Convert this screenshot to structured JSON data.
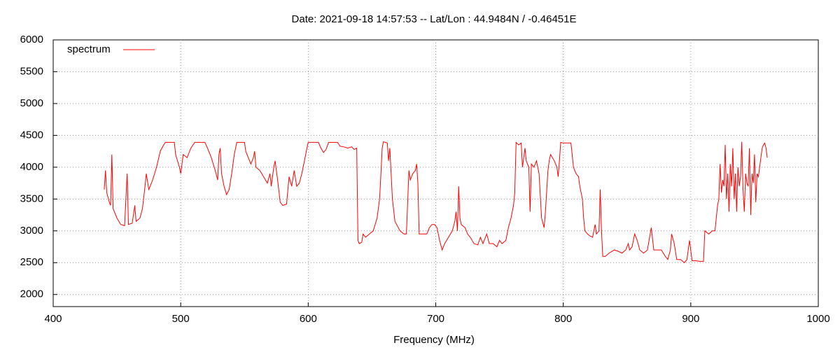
{
  "chart_data": {
    "type": "line",
    "title": "Date: 2021-09-18 14:57:53  --  Lat/Lon : 44.9484N / -0.46451E",
    "x_label": "Frequency (MHz)",
    "xlim": [
      400,
      1000
    ],
    "xticks": [
      400,
      500,
      600,
      700,
      800,
      900,
      1000
    ],
    "ylim": [
      1810,
      6000
    ],
    "yticks": [
      2000,
      2500,
      3000,
      3500,
      4000,
      4500,
      5000,
      5500,
      6000
    ],
    "grid": true,
    "legend_position": "top-left",
    "series": [
      {
        "name": "spectrum",
        "color": "#ff0000",
        "x": [
          440,
          441,
          442,
          444,
          445,
          446,
          447,
          450,
          453,
          456,
          458,
          459,
          462,
          464,
          465,
          468,
          470,
          472,
          473,
          475,
          478,
          481,
          484,
          486,
          488,
          492,
          495,
          496,
          499,
          500,
          502,
          505,
          508,
          511,
          516,
          519,
          521,
          524,
          527,
          529,
          530,
          531,
          532,
          534,
          536,
          538,
          540,
          542,
          544,
          548,
          550,
          551,
          553,
          555,
          557,
          558,
          559,
          562,
          565,
          568,
          570,
          571,
          573,
          574,
          576,
          578,
          580,
          583,
          585,
          587,
          589,
          591,
          593,
          595,
          597,
          599,
          600,
          605,
          608,
          610,
          612,
          614,
          616,
          620,
          623,
          625,
          628,
          631,
          634,
          636,
          638,
          639,
          640,
          642,
          643,
          645,
          648,
          651,
          654,
          656,
          657,
          658,
          659,
          662,
          663,
          664,
          666,
          668,
          672,
          675,
          677,
          679,
          680,
          682,
          684,
          685,
          686,
          687,
          690,
          693,
          695,
          697,
          699,
          701,
          703,
          705,
          707,
          710,
          713,
          715,
          716,
          717,
          718,
          719,
          720,
          723,
          725,
          727,
          730,
          733,
          735,
          737,
          740,
          742,
          745,
          748,
          750,
          752,
          755,
          757,
          759,
          761,
          762,
          763,
          765,
          767,
          768,
          770,
          771,
          773,
          774,
          775,
          777,
          779,
          781,
          783,
          785,
          786,
          788,
          789,
          790,
          793,
          795,
          796,
          797,
          798,
          800,
          803,
          806,
          807,
          808,
          810,
          812,
          813,
          815,
          816,
          817,
          819,
          821,
          823,
          825,
          826,
          828,
          829,
          830,
          831,
          833,
          836,
          840,
          843,
          846,
          849,
          851,
          852,
          854,
          856,
          858,
          860,
          863,
          866,
          869,
          871,
          874,
          877,
          880,
          882,
          884,
          885,
          887,
          889,
          892,
          895,
          897,
          899,
          901,
          904,
          907,
          910,
          911,
          914,
          917,
          919,
          921,
          922,
          923,
          924,
          925,
          926,
          927,
          928,
          929,
          930,
          931,
          932,
          933,
          934,
          935,
          936,
          937,
          938,
          939,
          940,
          941,
          942,
          943,
          944,
          945,
          946,
          947,
          948,
          949,
          950,
          951,
          952,
          953,
          954,
          955,
          956,
          957,
          958,
          959,
          960
        ],
        "values": [
          3650,
          3950,
          3600,
          3450,
          3400,
          4200,
          3350,
          3200,
          3100,
          3080,
          3900,
          3100,
          3120,
          3400,
          3150,
          3200,
          3350,
          3700,
          3900,
          3650,
          3800,
          4000,
          4250,
          4330,
          4390,
          4390,
          4390,
          4200,
          4000,
          3900,
          4200,
          4150,
          4300,
          4390,
          4390,
          4390,
          4300,
          4150,
          3950,
          3800,
          4200,
          4300,
          3900,
          3700,
          3570,
          3650,
          3900,
          4200,
          4390,
          4390,
          4390,
          4250,
          4150,
          4050,
          4150,
          4250,
          4000,
          3950,
          3850,
          3750,
          3900,
          3700,
          4000,
          4100,
          3800,
          3450,
          3400,
          3420,
          3850,
          3700,
          3950,
          3700,
          3750,
          3900,
          4100,
          4300,
          4390,
          4390,
          4390,
          4300,
          4230,
          4280,
          4390,
          4390,
          4390,
          4330,
          4320,
          4300,
          4320,
          4280,
          4300,
          2850,
          2800,
          2820,
          2950,
          2900,
          2950,
          3000,
          3200,
          3500,
          3900,
          4300,
          4400,
          4380,
          4100,
          4300,
          3500,
          3150,
          3000,
          2950,
          2950,
          3950,
          3800,
          3900,
          3950,
          4050,
          3750,
          2950,
          2950,
          2950,
          3050,
          3100,
          3100,
          3050,
          2850,
          2700,
          2800,
          2900,
          3000,
          3150,
          3300,
          3000,
          3700,
          3200,
          3100,
          3050,
          2950,
          2900,
          2800,
          2780,
          2900,
          2800,
          2950,
          2800,
          2800,
          2750,
          2850,
          2800,
          2850,
          3050,
          3200,
          3400,
          3600,
          4390,
          4350,
          4380,
          4000,
          4300,
          4100,
          4000,
          3300,
          4050,
          4000,
          4100,
          3900,
          3200,
          3050,
          3300,
          3950,
          4100,
          4200,
          4100,
          4000,
          3850,
          4100,
          4390,
          4380,
          4380,
          4380,
          4200,
          4000,
          3900,
          3850,
          3700,
          3500,
          3200,
          3000,
          2950,
          2920,
          2900,
          3100,
          2950,
          3000,
          3650,
          3000,
          2600,
          2600,
          2650,
          2700,
          2680,
          2650,
          2700,
          2800,
          2700,
          2750,
          2950,
          2850,
          2700,
          2650,
          2700,
          3050,
          2700,
          2700,
          2700,
          2600,
          2550,
          2700,
          2950,
          2800,
          2550,
          2550,
          2500,
          2550,
          2850,
          2530,
          2530,
          2520,
          2520,
          3000,
          2950,
          3000,
          3000,
          3400,
          3500,
          4050,
          3600,
          3800,
          3700,
          4350,
          3500,
          3900,
          3300,
          4050,
          3700,
          4300,
          3500,
          3900,
          3300,
          4000,
          3700,
          3850,
          4400,
          3650,
          3300,
          3900,
          3750,
          3700,
          4300,
          3250,
          3900,
          3750,
          4200,
          3450,
          3900,
          3850,
          4000,
          4150,
          4300,
          4350,
          4380,
          4300,
          4150
        ]
      }
    ]
  }
}
